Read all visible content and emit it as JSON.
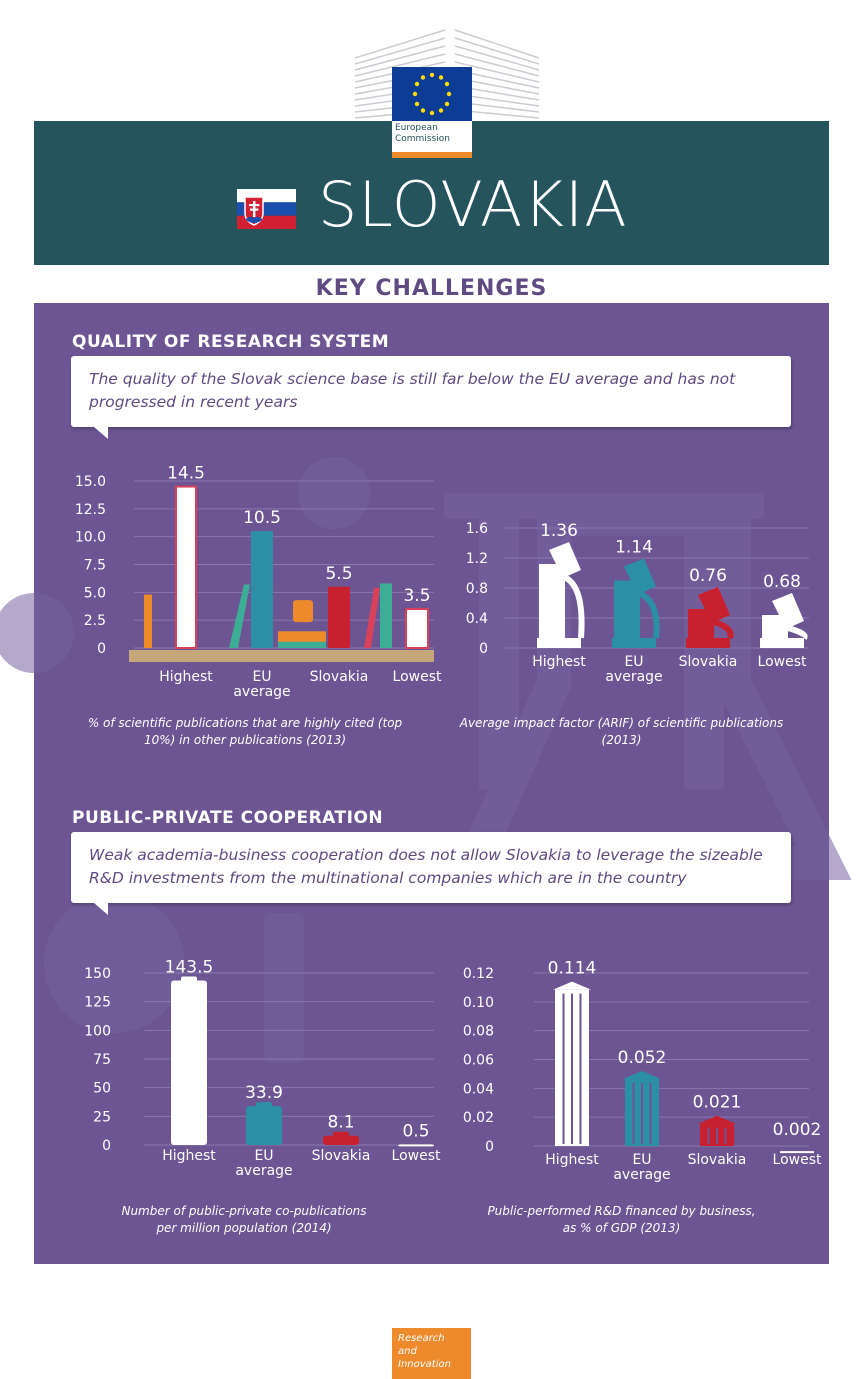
{
  "header": {
    "logo_line1": "European",
    "logo_line2": "Commission",
    "country": "SLOVAKIA"
  },
  "key_challenges_title": "KEY CHALLENGES",
  "sections": [
    {
      "title": "QUALITY OF RESEARCH SYSTEM",
      "callout": "The quality of the Slovak science base is still far below the EU average and has not progressed in recent years"
    },
    {
      "title": "PUBLIC-PRIVATE COOPERATION",
      "callout": "Weak academia-business cooperation does not allow Slovakia to leverage the sizeable R&D investments from the multinational companies which are in the country"
    }
  ],
  "chart_data": [
    {
      "type": "bar",
      "id": "highly-cited",
      "categories": [
        "Highest",
        "EU average",
        "Slovakia",
        "Lowest"
      ],
      "values": [
        14.5,
        10.5,
        5.5,
        3.5
      ],
      "value_labels": [
        "14.5",
        "10.5",
        "5.5",
        "3.5"
      ],
      "y_ticks": [
        "15.0",
        "12.5",
        "10.0",
        "7.5",
        "5.0",
        "2.5",
        "0"
      ],
      "ylim": [
        0,
        15
      ],
      "caption": "% of scientific publications that are highly cited (top 10%) in other publications (2013)",
      "colors": [
        "#ffffff",
        "#2b8fa5",
        "#c8202f",
        "#ffffff"
      ]
    },
    {
      "type": "bar",
      "id": "impact-factor",
      "categories": [
        "Highest",
        "EU average",
        "Slovakia",
        "Lowest"
      ],
      "values": [
        1.36,
        1.14,
        0.76,
        0.68
      ],
      "value_labels": [
        "1.36",
        "1.14",
        "0.76",
        "0.68"
      ],
      "y_ticks": [
        "1.6",
        "1.2",
        "0.8",
        "0.4",
        "0"
      ],
      "ylim": [
        0,
        1.6
      ],
      "caption": "Average impact factor (ARIF) of scientific publications (2013)",
      "colors": [
        "#ffffff",
        "#2b8fa5",
        "#c8202f",
        "#ffffff"
      ]
    },
    {
      "type": "bar",
      "id": "co-publications",
      "categories": [
        "Highest",
        "EU average",
        "Slovakia",
        "Lowest"
      ],
      "values": [
        143.5,
        33.9,
        8.1,
        0.5
      ],
      "value_labels": [
        "143.5",
        "33.9",
        "8.1",
        "0.5"
      ],
      "y_ticks": [
        "150",
        "125",
        "100",
        "75",
        "50",
        "25",
        "0"
      ],
      "ylim": [
        0,
        150
      ],
      "caption": "Number of public-private co-publications per million population (2014)",
      "colors": [
        "#ffffff",
        "#2b8fa5",
        "#c8202f",
        "#ffffff"
      ]
    },
    {
      "type": "bar",
      "id": "rd-financed",
      "categories": [
        "Highest",
        "EU average",
        "Slovakia",
        "Lowest"
      ],
      "values": [
        0.114,
        0.052,
        0.021,
        0.002
      ],
      "value_labels": [
        "0.114",
        "0.052",
        "0.021",
        "0.002"
      ],
      "y_ticks": [
        "0.12",
        "0.10",
        "0.08",
        "0.06",
        "0.04",
        "0.02",
        "0"
      ],
      "ylim": [
        0,
        0.12
      ],
      "caption": "Public-performed R&D financed by business, as % of GDP (2013)",
      "colors": [
        "#ffffff",
        "#2b8fa5",
        "#c8202f",
        "#ffffff"
      ]
    }
  ],
  "footer": {
    "line1": "Research and",
    "line2": "Innovation"
  }
}
